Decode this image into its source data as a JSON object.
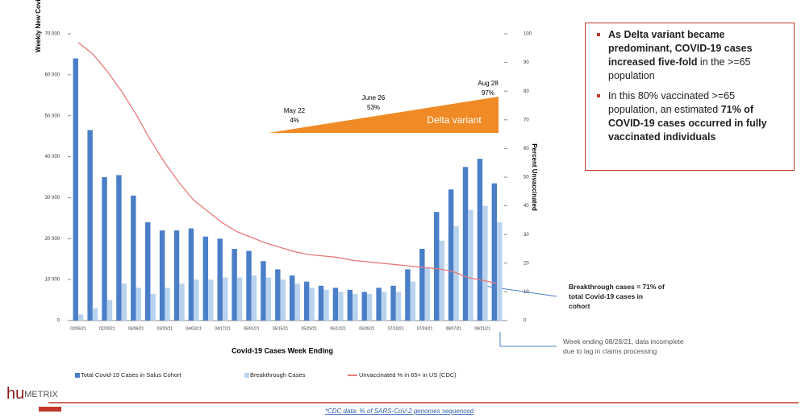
{
  "chart_data": {
    "type": "bar",
    "y_label": "Weekly New Covid-19 Infections",
    "y2_label": "Percent Unvaccinated",
    "x_label": "Covid-19 Cases Week Ending",
    "categories": [
      "02/06/21",
      null,
      "02/20/21",
      null,
      "03/06/21",
      null,
      "03/20/21",
      null,
      "04/03/21",
      null,
      "04/17/21",
      null,
      "05/01/21",
      null,
      "05/15/21",
      null,
      "05/29/21",
      null,
      "06/12/21",
      null,
      "06/26/21",
      null,
      "07/10/21",
      null,
      "07/24/21",
      null,
      "08/07/21",
      null,
      "08/21/21",
      null
    ],
    "series": [
      {
        "name": "Total Covid-19 Cases in Salus Cohort",
        "color": "#4a7fc8",
        "values": [
          64000,
          46500,
          35000,
          35500,
          30500,
          24000,
          22000,
          22000,
          22500,
          20500,
          20000,
          17500,
          17000,
          14500,
          12500,
          11000,
          9500,
          8500,
          8000,
          7500,
          7000,
          8000,
          8500,
          12500,
          17500,
          26500,
          32000,
          37500,
          39500,
          33500
        ]
      },
      {
        "name": "Breakthrough Cases",
        "color": "#b9d3ee",
        "values": [
          1500,
          3000,
          5000,
          9000,
          8000,
          6500,
          8000,
          9000,
          10000,
          10000,
          10500,
          10500,
          11000,
          10500,
          10000,
          9000,
          8000,
          7500,
          7000,
          6500,
          6500,
          7000,
          7000,
          9500,
          13000,
          19500,
          23000,
          27000,
          28000,
          24000
        ]
      },
      {
        "name": "Unvaccinated % in 65+ in US (CDC)",
        "color": "#e8797a",
        "axis": "y2",
        "type": "line",
        "values": [
          97,
          93,
          87,
          80,
          72,
          63,
          55,
          48,
          42,
          38,
          34,
          31,
          29,
          27,
          25.5,
          24,
          23,
          22.5,
          22,
          21,
          20.5,
          20,
          19.5,
          19,
          18.5,
          18,
          17,
          15,
          14,
          13
        ]
      }
    ],
    "ylim": [
      0,
      70000
    ],
    "yticks": [
      0,
      {
        "value": 10000,
        "label": "10 000"
      },
      {
        "value": 20000,
        "label": "20 000"
      },
      {
        "value": 30000,
        "label": "30 000"
      },
      {
        "value": 40000,
        "label": "40 000"
      },
      {
        "value": 50000,
        "label": "50 000"
      },
      {
        "value": 60000,
        "label": "60 000"
      },
      {
        "value": 70000,
        "label": "70 000"
      }
    ],
    "y2lim": [
      0,
      100
    ],
    "y2ticks": [
      0,
      10,
      20,
      30,
      40,
      50,
      60,
      70,
      80,
      90,
      100
    ],
    "delta": {
      "label": "Delta variant",
      "points": [
        [
          "May 22",
          "4%"
        ],
        [
          "June 26",
          "53%"
        ],
        [
          "Aug 28",
          "97%"
        ]
      ]
    },
    "annotations": [
      "Breakthrough cases = 71% of total Covid-19 cases in cohort",
      "Week ending 08/28/21, data incomplete due to lag in claims processing"
    ]
  },
  "textbox": {
    "bullets": [
      [
        {
          "text": "As Delta variant became predominant, COVID-19 cases increased five-fold",
          "bold": true
        },
        {
          "text": " in the >=65 population",
          "bold": false
        }
      ],
      [
        {
          "text": "In this 80% vaccinated >=65 population, an estimated ",
          "bold": false
        },
        {
          "text": "71% of COVID-19 cases occurred in fully vaccinated individuals",
          "bold": true
        }
      ]
    ]
  },
  "footer": {
    "logo_a": "hu",
    "logo_b": "METRIX",
    "footnote": "*CDC data: % of SARS-CoV-2 genomes sequenced"
  }
}
